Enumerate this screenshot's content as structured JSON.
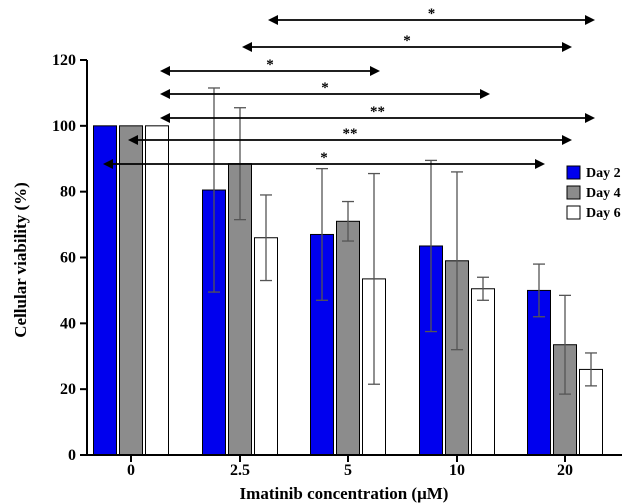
{
  "chart_data": {
    "type": "bar",
    "xlabel": "Imatinib concentration (μM)",
    "ylabel": "Cellular viability (%)",
    "ylim": [
      0,
      120
    ],
    "yticks": [
      "0",
      "20",
      "40",
      "60",
      "80",
      "100",
      "120"
    ],
    "categories": [
      "0",
      "2.5",
      "5",
      "10",
      "20"
    ],
    "series": [
      {
        "name": "Day 2",
        "color": "#0000ee",
        "values": [
          100,
          80.5,
          67,
          63.5,
          50
        ],
        "errors": [
          0,
          31,
          20,
          26,
          8
        ]
      },
      {
        "name": "Day 4",
        "color": "#8c8c8c",
        "values": [
          100,
          88.5,
          71,
          59,
          33.5
        ],
        "errors": [
          0,
          17,
          6,
          27,
          15
        ]
      },
      {
        "name": "Day 6",
        "color": "#ffffff",
        "values": [
          100,
          66,
          53.5,
          50.5,
          26
        ],
        "errors": [
          0,
          13,
          32,
          3.5,
          5
        ]
      }
    ],
    "legend": {
      "position": "right",
      "entries": [
        "Day 2",
        "Day 4",
        "Day 6"
      ]
    },
    "grid": false,
    "annotations": [
      {
        "label": "*",
        "from": [
          1,
          0
        ],
        "to": [
          4,
          2
        ]
      },
      {
        "label": "*",
        "from": [
          1,
          0
        ],
        "to": [
          4,
          1
        ]
      },
      {
        "label": "*",
        "from": [
          0,
          2
        ],
        "to": [
          2,
          2
        ]
      },
      {
        "label": "*",
        "from": [
          0,
          2
        ],
        "to": [
          3,
          1
        ]
      },
      {
        "label": "**",
        "from": [
          0,
          2
        ],
        "to": [
          4,
          2
        ]
      },
      {
        "label": "**",
        "from": [
          0,
          1
        ],
        "to": [
          4,
          1
        ]
      },
      {
        "label": "*",
        "from": [
          0,
          0
        ],
        "to": [
          3,
          2
        ]
      }
    ]
  }
}
